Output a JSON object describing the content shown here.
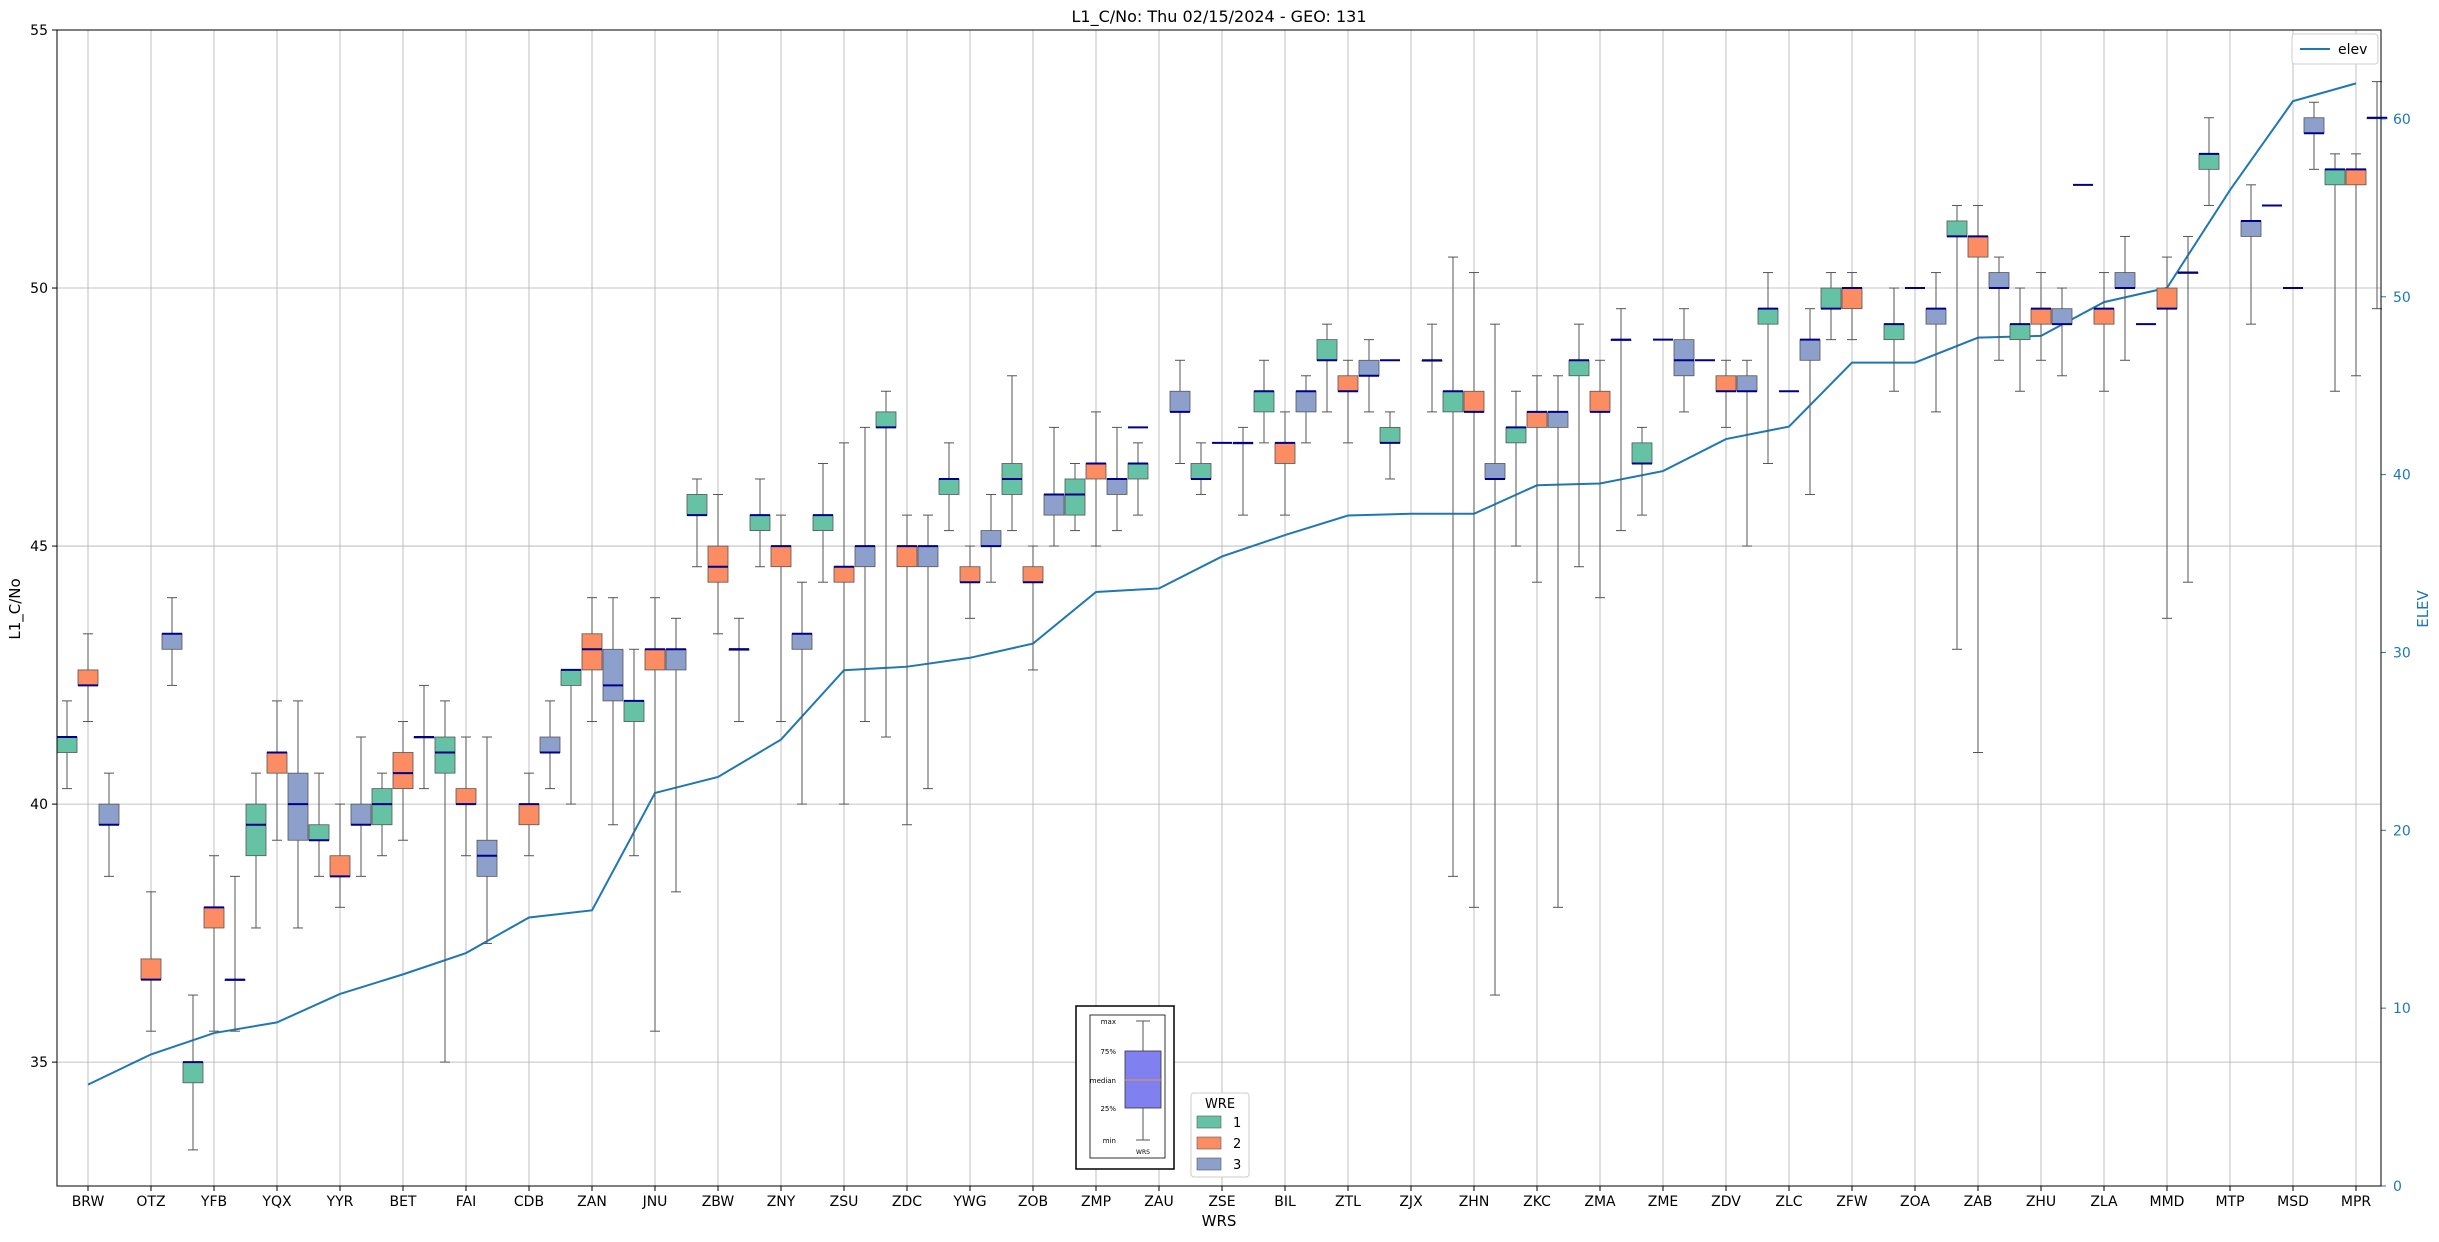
{
  "chart_data": {
    "type": "box",
    "title": "L1_C/No: Thu 02/15/2024 - GEO: 131",
    "xlabel": "WRS",
    "ylabel": "L1_C/No",
    "y2label": "ELEV",
    "ylim": [
      32.6,
      55
    ],
    "y2lim": [
      0,
      65
    ],
    "yticks": [
      "35",
      "40",
      "45",
      "50",
      "55"
    ],
    "y2ticks": [
      "0",
      "10",
      "20",
      "30",
      "40",
      "50",
      "60"
    ],
    "grid": true,
    "categories": [
      "BRW",
      "OTZ",
      "YFB",
      "YQX",
      "YYR",
      "BET",
      "FAI",
      "CDB",
      "ZAN",
      "JNU",
      "ZBW",
      "ZNY",
      "ZSU",
      "ZDC",
      "YWG",
      "ZOB",
      "ZMP",
      "ZAU",
      "ZSE",
      "BIL",
      "ZTL",
      "ZJX",
      "ZHN",
      "ZKC",
      "ZMA",
      "ZME",
      "ZDV",
      "ZLC",
      "ZFW",
      "ZOA",
      "ZAB",
      "ZHU",
      "ZLA",
      "MMD",
      "MTP",
      "MSD",
      "MPR"
    ],
    "elev": [
      5.7,
      7.4,
      8.6,
      9.2,
      10.8,
      11.9,
      13.1,
      15.1,
      15.5,
      22.1,
      23.0,
      25.1,
      29.0,
      29.2,
      29.7,
      30.5,
      33.4,
      33.6,
      35.4,
      36.6,
      37.7,
      37.8,
      37.8,
      39.4,
      39.5,
      40.2,
      42.0,
      42.7,
      46.3,
      46.3,
      47.7,
      47.8,
      49.7,
      50.5,
      56.0,
      61.0,
      62.0
    ],
    "elev_label": "elev",
    "legend_wre_title": "WRE",
    "wre_colors": {
      "1": "#66c2a5",
      "2": "#fc8d62",
      "3": "#8da0cb"
    },
    "median_color": "#00008b",
    "elev_color": "#1f77b4",
    "box_key": {
      "labels": [
        "max",
        "75%",
        "median",
        "25%",
        "min"
      ],
      "xlabel": "WRS"
    },
    "series": [
      {
        "name": "1",
        "values": [
          [
            40.3,
            41.0,
            41.3,
            41.3,
            42.0
          ],
          null,
          [
            33.3,
            34.6,
            35.0,
            35.0,
            36.3
          ],
          [
            37.6,
            39.0,
            39.6,
            40.0,
            40.6
          ],
          [
            38.6,
            39.3,
            39.3,
            39.6,
            40.6
          ],
          [
            39.0,
            39.6,
            40.0,
            40.3,
            40.6
          ],
          [
            35.0,
            40.6,
            41.0,
            41.3,
            42.0
          ],
          null,
          [
            40.0,
            42.3,
            42.6,
            42.6,
            42.6
          ],
          [
            39.0,
            41.6,
            42.0,
            42.0,
            43.0
          ],
          [
            44.6,
            45.6,
            45.6,
            46.0,
            46.3
          ],
          [
            44.6,
            45.3,
            45.6,
            45.6,
            46.3
          ],
          [
            44.3,
            45.3,
            45.6,
            45.6,
            46.6
          ],
          [
            41.3,
            47.3,
            47.3,
            47.6,
            48.0
          ],
          [
            45.3,
            46.0,
            46.3,
            46.3,
            47.0
          ],
          [
            45.3,
            46.0,
            46.3,
            46.6,
            48.3
          ],
          [
            45.3,
            45.6,
            46.0,
            46.3,
            46.6
          ],
          [
            45.6,
            46.3,
            46.6,
            46.6,
            47.0
          ],
          [
            46.0,
            46.3,
            46.3,
            46.6,
            47.0
          ],
          [
            47.0,
            47.6,
            48.0,
            48.0,
            48.6
          ],
          [
            47.6,
            48.6,
            48.6,
            49.0,
            49.3
          ],
          [
            46.3,
            47.0,
            47.0,
            47.3,
            47.6
          ],
          [
            38.6,
            47.6,
            48.0,
            48.0,
            50.6
          ],
          [
            45.0,
            47.0,
            47.3,
            47.3,
            48.0
          ],
          [
            44.6,
            48.3,
            48.6,
            48.6,
            49.3
          ],
          [
            45.6,
            46.6,
            46.6,
            47.0,
            47.3
          ],
          null,
          [
            46.6,
            49.3,
            49.6,
            49.6,
            50.3
          ],
          [
            49.0,
            49.6,
            49.6,
            50.0,
            50.3
          ],
          [
            48.0,
            49.0,
            49.3,
            49.3,
            50.0
          ],
          [
            43.0,
            51.0,
            51.0,
            51.3,
            51.6
          ],
          [
            48.0,
            49.0,
            49.3,
            49.3,
            50.0
          ],
          null,
          null,
          [
            51.6,
            52.3,
            52.6,
            52.6,
            53.3
          ],
          null,
          [
            48.0,
            52.0,
            52.3,
            52.3,
            52.6
          ]
        ]
      },
      {
        "name": "2",
        "values": [
          [
            41.6,
            42.3,
            42.3,
            42.6,
            43.3
          ],
          [
            35.6,
            36.6,
            36.6,
            37.0,
            38.3
          ],
          [
            35.6,
            37.6,
            38.0,
            38.0,
            39.0
          ],
          [
            39.3,
            40.6,
            41.0,
            41.0,
            42.0
          ],
          [
            38.0,
            38.6,
            38.6,
            39.0,
            40.0
          ],
          [
            39.3,
            40.3,
            40.6,
            41.0,
            41.6
          ],
          [
            39.0,
            40.0,
            40.0,
            40.3,
            41.3
          ],
          [
            39.0,
            39.6,
            40.0,
            40.0,
            40.6
          ],
          [
            41.6,
            42.6,
            43.0,
            43.3,
            44.0
          ],
          [
            35.6,
            42.6,
            43.0,
            43.0,
            44.0
          ],
          [
            43.3,
            44.3,
            44.6,
            45.0,
            46.0
          ],
          [
            41.6,
            44.6,
            45.0,
            45.0,
            45.6
          ],
          [
            40.0,
            44.3,
            44.6,
            44.6,
            47.0
          ],
          [
            39.6,
            44.6,
            45.0,
            45.0,
            45.6
          ],
          [
            43.6,
            44.3,
            44.3,
            44.6,
            45.0
          ],
          [
            42.6,
            44.3,
            44.3,
            44.6,
            45.0
          ],
          [
            45.0,
            46.3,
            46.6,
            46.6,
            47.6
          ],
          null,
          null,
          [
            45.6,
            46.6,
            47.0,
            47.0,
            47.6
          ],
          [
            47.0,
            48.0,
            48.0,
            48.3,
            48.6
          ],
          null,
          [
            38.0,
            47.6,
            47.6,
            48.0,
            50.3
          ],
          [
            44.3,
            47.3,
            47.6,
            47.6,
            48.3
          ],
          [
            44.0,
            47.6,
            47.6,
            48.0,
            48.6
          ],
          null,
          [
            47.3,
            48.0,
            48.0,
            48.3,
            48.6
          ],
          null,
          [
            49.0,
            49.6,
            50.0,
            50.0,
            50.3
          ],
          null,
          [
            41.0,
            50.6,
            51.0,
            51.0,
            51.6
          ],
          [
            48.6,
            49.3,
            49.6,
            49.6,
            50.3
          ],
          [
            48.0,
            49.3,
            49.6,
            49.6,
            50.3
          ],
          [
            43.6,
            49.6,
            49.6,
            50.0,
            50.6
          ],
          null,
          null,
          [
            48.3,
            52.0,
            52.3,
            52.3,
            52.6
          ]
        ]
      },
      {
        "name": "3",
        "values": [
          [
            38.6,
            39.6,
            39.6,
            40.0,
            40.6
          ],
          [
            42.3,
            43.0,
            43.3,
            43.3,
            44.0
          ],
          [
            35.6,
            36.6,
            36.6,
            36.6,
            38.6
          ],
          [
            37.6,
            39.3,
            40.0,
            40.6,
            42.0
          ],
          [
            38.6,
            39.6,
            39.6,
            40.0,
            41.3
          ],
          [
            40.3,
            41.3,
            41.3,
            41.3,
            42.3
          ],
          [
            37.3,
            38.6,
            39.0,
            39.3,
            41.3
          ],
          [
            40.3,
            41.0,
            41.0,
            41.3,
            42.0
          ],
          [
            39.6,
            42.0,
            42.3,
            43.0,
            44.0
          ],
          [
            38.3,
            42.6,
            43.0,
            43.0,
            43.6
          ],
          [
            41.6,
            43.0,
            43.0,
            43.0,
            43.6
          ],
          [
            40.0,
            43.0,
            43.3,
            43.3,
            44.3
          ],
          [
            41.6,
            44.6,
            45.0,
            45.0,
            47.3
          ],
          [
            40.3,
            44.6,
            45.0,
            45.0,
            45.6
          ],
          [
            44.3,
            45.0,
            45.0,
            45.3,
            46.0
          ],
          [
            45.0,
            45.6,
            46.0,
            46.0,
            47.3
          ],
          [
            45.3,
            46.0,
            46.3,
            46.3,
            47.3
          ],
          [
            46.6,
            47.6,
            47.6,
            48.0,
            48.6
          ],
          [
            45.6,
            47.0,
            47.0,
            47.0,
            47.3
          ],
          [
            47.0,
            47.6,
            48.0,
            48.0,
            48.3
          ],
          [
            47.6,
            48.3,
            48.3,
            48.6,
            49.0
          ],
          [
            47.6,
            48.6,
            48.6,
            48.6,
            49.3
          ],
          [
            36.3,
            46.3,
            46.3,
            46.6,
            49.3
          ],
          [
            38.0,
            47.3,
            47.6,
            47.6,
            48.3
          ],
          [
            45.3,
            49.0,
            49.0,
            49.0,
            49.6
          ],
          [
            47.6,
            48.3,
            48.6,
            49.0,
            49.6
          ],
          [
            45.0,
            48.0,
            48.0,
            48.3,
            48.6
          ],
          [
            46.0,
            48.6,
            49.0,
            49.0,
            49.6
          ],
          null,
          [
            47.6,
            49.3,
            49.6,
            49.6,
            50.3
          ],
          [
            48.6,
            50.0,
            50.0,
            50.3,
            50.6
          ],
          [
            48.3,
            49.3,
            49.3,
            49.6,
            50.0
          ],
          [
            48.6,
            50.0,
            50.0,
            50.3,
            51.0
          ],
          [
            44.3,
            50.3,
            50.3,
            50.3,
            51.0
          ],
          [
            49.3,
            51.0,
            51.3,
            51.3,
            52.0
          ],
          [
            52.3,
            53.0,
            53.0,
            53.3,
            53.6
          ],
          [
            49.6,
            53.3,
            53.3,
            53.3,
            54.0
          ]
        ]
      }
    ],
    "extra_medians": [
      {
        "wrs": "ZBW",
        "wre": "3",
        "value": 43.0
      },
      {
        "wrs": "ZAU",
        "wre": "1",
        "value": 47.3
      },
      {
        "wrs": "ZSE",
        "wre": "2",
        "value": 47.0
      },
      {
        "wrs": "ZJX",
        "wre": "1",
        "value": 48.6
      },
      {
        "wrs": "ZME",
        "wre": "2",
        "value": 49.0
      },
      {
        "wrs": "ZDV",
        "wre": "1",
        "value": 48.6
      },
      {
        "wrs": "ZLC",
        "wre": "2",
        "value": 48.0
      },
      {
        "wrs": "ZOA",
        "wre": "2",
        "value": 50.0
      },
      {
        "wrs": "ZLA",
        "wre": "1",
        "value": 52.0
      },
      {
        "wrs": "MMD",
        "wre": "1",
        "value": 49.3
      },
      {
        "wrs": "MSD",
        "wre": "1",
        "value": 51.6
      },
      {
        "wrs": "MSD",
        "wre": "2",
        "value": 50.0
      }
    ]
  }
}
